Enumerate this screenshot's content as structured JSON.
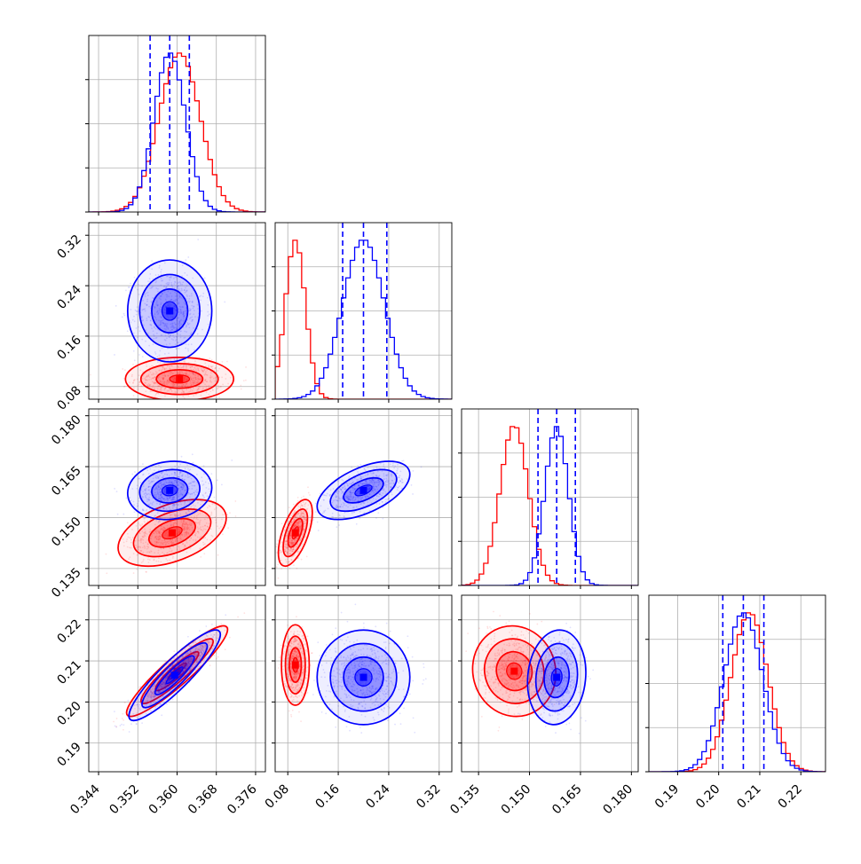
{
  "chart_data": {
    "type": "corner",
    "parameters": 4,
    "series": [
      {
        "color": "#ff0000",
        "marginals": [
          {
            "mean": 0.3605,
            "sd": 0.0042,
            "range": [
              0.342,
              0.378
            ],
            "bins": 20
          },
          {
            "mean": 0.092,
            "sd": 0.016,
            "range": [
              0.06,
              0.34
            ],
            "bins": 20
          },
          {
            "mean": 0.1455,
            "sd": 0.0042,
            "range": [
              0.13,
              0.182
            ],
            "bins": 20
          },
          {
            "mean": 0.2075,
            "sd": 0.0045,
            "range": [
              0.183,
              0.226
            ],
            "bins": 20
          }
        ],
        "pairs": [
          {
            "row": 1,
            "col": 0,
            "x": 0.3605,
            "y": 0.092,
            "sx": 0.0045,
            "sy": 0.014,
            "rho": 0.0
          },
          {
            "row": 2,
            "col": 0,
            "x": 0.359,
            "y": 0.1455,
            "sx": 0.0045,
            "sy": 0.004,
            "rho": 0.45
          },
          {
            "row": 2,
            "col": 1,
            "x": 0.092,
            "y": 0.1455,
            "sx": 0.011,
            "sy": 0.004,
            "rho": 0.6
          },
          {
            "row": 3,
            "col": 0,
            "x": 0.36,
            "y": 0.2075,
            "sx": 0.0042,
            "sy": 0.0045,
            "rho": 0.92
          },
          {
            "row": 3,
            "col": 1,
            "x": 0.092,
            "y": 0.209,
            "sx": 0.009,
            "sy": 0.004,
            "rho": 0.0
          },
          {
            "row": 3,
            "col": 2,
            "x": 0.1455,
            "y": 0.2075,
            "sx": 0.005,
            "sy": 0.0045,
            "rho": -0.05
          }
        ]
      },
      {
        "color": "#0000ff",
        "marginals": [
          {
            "mean": 0.3585,
            "sd": 0.0032,
            "range": [
              0.342,
              0.378
            ],
            "bins": 20
          },
          {
            "mean": 0.2,
            "sd": 0.033,
            "range": [
              0.06,
              0.34
            ],
            "bins": 20
          },
          {
            "mean": 0.158,
            "sd": 0.0035,
            "range": [
              0.13,
              0.182
            ],
            "bins": 20
          },
          {
            "mean": 0.206,
            "sd": 0.0047,
            "range": [
              0.183,
              0.226
            ],
            "bins": 20
          }
        ],
        "quantiles": [
          [
            0.3545,
            0.3585,
            0.3625
          ],
          [
            0.167,
            0.2,
            0.237
          ],
          [
            0.1525,
            0.158,
            0.1635
          ],
          [
            0.201,
            0.206,
            0.211
          ]
        ],
        "pairs": [
          {
            "row": 1,
            "col": 0,
            "x": 0.3585,
            "y": 0.2,
            "sx": 0.0035,
            "sy": 0.033,
            "rho": 0.0
          },
          {
            "row": 2,
            "col": 0,
            "x": 0.3585,
            "y": 0.158,
            "sx": 0.0035,
            "sy": 0.0035,
            "rho": 0.1
          },
          {
            "row": 2,
            "col": 1,
            "x": 0.2,
            "y": 0.158,
            "sx": 0.03,
            "sy": 0.0035,
            "rho": 0.55
          },
          {
            "row": 3,
            "col": 0,
            "x": 0.3595,
            "y": 0.2065,
            "sx": 0.0038,
            "sy": 0.0045,
            "rho": 0.9
          },
          {
            "row": 3,
            "col": 1,
            "x": 0.2,
            "y": 0.206,
            "sx": 0.03,
            "sy": 0.0047,
            "rho": 0.0
          },
          {
            "row": 3,
            "col": 2,
            "x": 0.158,
            "y": 0.206,
            "sx": 0.0035,
            "sy": 0.0047,
            "rho": 0.1
          }
        ]
      }
    ],
    "axes": [
      {
        "range": [
          0.342,
          0.378
        ],
        "ticks": [
          "0.344",
          "0.352",
          "0.360",
          "0.368",
          "0.376"
        ],
        "values": [
          0.344,
          0.352,
          0.36,
          0.368,
          0.376
        ]
      },
      {
        "range": [
          0.06,
          0.34
        ],
        "ticks": [
          "0.08",
          "0.16",
          "0.24",
          "0.32"
        ],
        "values": [
          0.08,
          0.16,
          0.24,
          0.32
        ]
      },
      {
        "range": [
          0.13,
          0.182
        ],
        "ticks": [
          "0.135",
          "0.150",
          "0.165",
          "0.180"
        ],
        "values": [
          0.135,
          0.15,
          0.165,
          0.18
        ]
      },
      {
        "range": [
          0.183,
          0.226
        ],
        "ticks": [
          "0.19",
          "0.20",
          "0.21",
          "0.22"
        ],
        "values": [
          0.19,
          0.2,
          0.21,
          0.22
        ]
      }
    ],
    "grid": true,
    "contour_levels": 3,
    "xlabel": "",
    "ylabel": "",
    "title": ""
  }
}
